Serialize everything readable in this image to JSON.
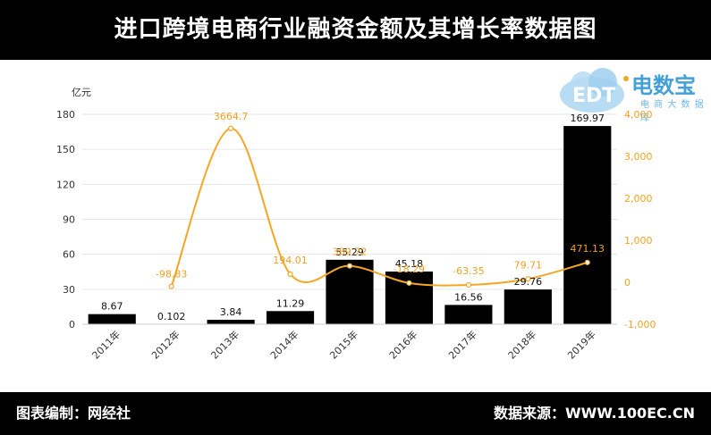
{
  "title": "进口跨境电商行业融资金额及其增长率数据图",
  "footer": {
    "left": "图表编制：网经社",
    "right": "数据来源：WWW.100EC.CN"
  },
  "logo": {
    "brand": "电数宝",
    "sub": "电 商 大 数 据 库",
    "mark": "EDT"
  },
  "colors": {
    "bar": "#000000",
    "line": "#f5a623",
    "header_bg": "#000000",
    "brand": "#43a1d8"
  },
  "chart_data": {
    "type": "bar+line",
    "title": "进口跨境电商行业融资金额及其增长率数据图",
    "ylabel": "亿元",
    "categories": [
      "2011年",
      "2012年",
      "2013年",
      "2014年",
      "2015年",
      "2016年",
      "2017年",
      "2018年",
      "2019年"
    ],
    "series": [
      {
        "type": "bar",
        "axis": "left",
        "values": [
          8.67,
          0.102,
          3.84,
          11.29,
          55.29,
          45.18,
          16.56,
          29.76,
          169.97
        ],
        "labels": [
          "8.67",
          "0.102",
          "3.84",
          "11.29",
          "55.29",
          "45.18",
          "16.56",
          "29.76",
          "169.97"
        ]
      },
      {
        "type": "line",
        "axis": "right",
        "values": [
          null,
          -98.83,
          3664.7,
          194.01,
          389.72,
          -18.29,
          -63.35,
          79.71,
          471.13
        ],
        "labels": [
          "",
          "-98.83",
          "3664.7",
          "194.01",
          "389.72",
          "-18.29",
          "-63.35",
          "79.71",
          "471.13"
        ]
      }
    ],
    "ylim": [
      0,
      180
    ],
    "yticks": [
      "0",
      "30",
      "60",
      "90",
      "120",
      "150",
      "180"
    ],
    "ylim_right": [
      -1000,
      4000
    ],
    "yticks_right": [
      "-1,000",
      "0",
      "1,000",
      "2,000",
      "3,000",
      "4,000"
    ],
    "grid": true
  }
}
